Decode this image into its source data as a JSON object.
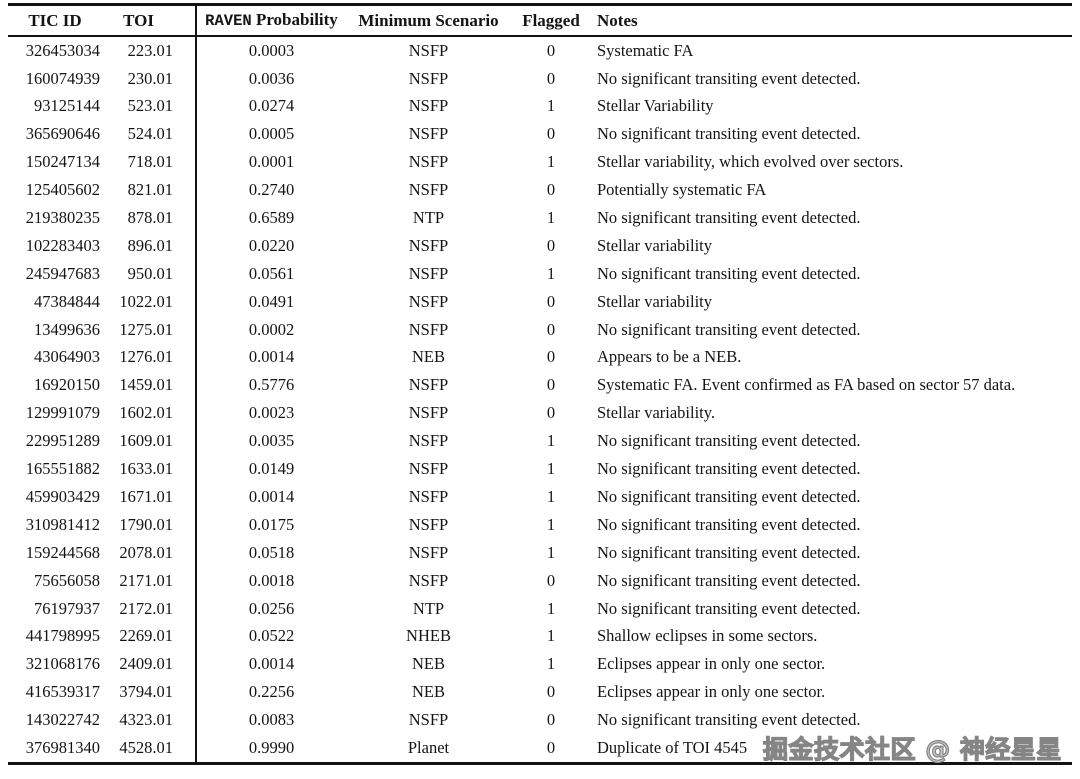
{
  "table": {
    "header": {
      "tic_id": "TIC ID",
      "toi": "TOI",
      "raven": "RAVEN",
      "probability": "Probability",
      "minimum_scenario": "Minimum Scenario",
      "flagged": "Flagged",
      "notes": "Notes"
    },
    "rows": [
      {
        "tic_id": "326453034",
        "toi": "223.01",
        "probability": "0.0003",
        "scenario": "NSFP",
        "flagged": "0",
        "notes": "Systematic FA"
      },
      {
        "tic_id": "160074939",
        "toi": "230.01",
        "probability": "0.0036",
        "scenario": "NSFP",
        "flagged": "0",
        "notes": "No significant transiting event detected."
      },
      {
        "tic_id": "93125144",
        "toi": "523.01",
        "probability": "0.0274",
        "scenario": "NSFP",
        "flagged": "1",
        "notes": "Stellar Variability"
      },
      {
        "tic_id": "365690646",
        "toi": "524.01",
        "probability": "0.0005",
        "scenario": "NSFP",
        "flagged": "0",
        "notes": "No significant transiting event detected."
      },
      {
        "tic_id": "150247134",
        "toi": "718.01",
        "probability": "0.0001",
        "scenario": "NSFP",
        "flagged": "1",
        "notes": "Stellar variability, which evolved over sectors."
      },
      {
        "tic_id": "125405602",
        "toi": "821.01",
        "probability": "0.2740",
        "scenario": "NSFP",
        "flagged": "0",
        "notes": "Potentially systematic FA"
      },
      {
        "tic_id": "219380235",
        "toi": "878.01",
        "probability": "0.6589",
        "scenario": "NTP",
        "flagged": "1",
        "notes": "No significant transiting event detected."
      },
      {
        "tic_id": "102283403",
        "toi": "896.01",
        "probability": "0.0220",
        "scenario": "NSFP",
        "flagged": "0",
        "notes": "Stellar variability"
      },
      {
        "tic_id": "245947683",
        "toi": "950.01",
        "probability": "0.0561",
        "scenario": "NSFP",
        "flagged": "1",
        "notes": "No significant transiting event detected."
      },
      {
        "tic_id": "47384844",
        "toi": "1022.01",
        "probability": "0.0491",
        "scenario": "NSFP",
        "flagged": "0",
        "notes": "Stellar variability"
      },
      {
        "tic_id": "13499636",
        "toi": "1275.01",
        "probability": "0.0002",
        "scenario": "NSFP",
        "flagged": "0",
        "notes": "No significant transiting event detected."
      },
      {
        "tic_id": "43064903",
        "toi": "1276.01",
        "probability": "0.0014",
        "scenario": "NEB",
        "flagged": "0",
        "notes": "Appears to be a NEB."
      },
      {
        "tic_id": "16920150",
        "toi": "1459.01",
        "probability": "0.5776",
        "scenario": "NSFP",
        "flagged": "0",
        "notes": "Systematic FA. Event confirmed as FA based on sector 57 data."
      },
      {
        "tic_id": "129991079",
        "toi": "1602.01",
        "probability": "0.0023",
        "scenario": "NSFP",
        "flagged": "0",
        "notes": "Stellar variability."
      },
      {
        "tic_id": "229951289",
        "toi": "1609.01",
        "probability": "0.0035",
        "scenario": "NSFP",
        "flagged": "1",
        "notes": "No significant transiting event detected."
      },
      {
        "tic_id": "165551882",
        "toi": "1633.01",
        "probability": "0.0149",
        "scenario": "NSFP",
        "flagged": "1",
        "notes": "No significant transiting event detected."
      },
      {
        "tic_id": "459903429",
        "toi": "1671.01",
        "probability": "0.0014",
        "scenario": "NSFP",
        "flagged": "1",
        "notes": "No significant transiting event detected."
      },
      {
        "tic_id": "310981412",
        "toi": "1790.01",
        "probability": "0.0175",
        "scenario": "NSFP",
        "flagged": "1",
        "notes": "No significant transiting event detected."
      },
      {
        "tic_id": "159244568",
        "toi": "2078.01",
        "probability": "0.0518",
        "scenario": "NSFP",
        "flagged": "1",
        "notes": "No significant transiting event detected."
      },
      {
        "tic_id": "75656058",
        "toi": "2171.01",
        "probability": "0.0018",
        "scenario": "NSFP",
        "flagged": "0",
        "notes": "No significant transiting event detected."
      },
      {
        "tic_id": "76197937",
        "toi": "2172.01",
        "probability": "0.0256",
        "scenario": "NTP",
        "flagged": "1",
        "notes": "No significant transiting event detected."
      },
      {
        "tic_id": "441798995",
        "toi": "2269.01",
        "probability": "0.0522",
        "scenario": "NHEB",
        "flagged": "1",
        "notes": "Shallow eclipses in some sectors."
      },
      {
        "tic_id": "321068176",
        "toi": "2409.01",
        "probability": "0.0014",
        "scenario": "NEB",
        "flagged": "1",
        "notes": "Eclipses appear in only one sector."
      },
      {
        "tic_id": "416539317",
        "toi": "3794.01",
        "probability": "0.2256",
        "scenario": "NEB",
        "flagged": "0",
        "notes": "Eclipses appear in only one sector."
      },
      {
        "tic_id": "143022742",
        "toi": "4323.01",
        "probability": "0.0083",
        "scenario": "NSFP",
        "flagged": "0",
        "notes": "No significant transiting event detected."
      },
      {
        "tic_id": "376981340",
        "toi": "4528.01",
        "probability": "0.9990",
        "scenario": "Planet",
        "flagged": "0",
        "notes": "Duplicate of TOI 4545"
      }
    ]
  },
  "watermark": {
    "text": "掘金技术社区 @ 神经星星",
    "color": "#858585"
  }
}
